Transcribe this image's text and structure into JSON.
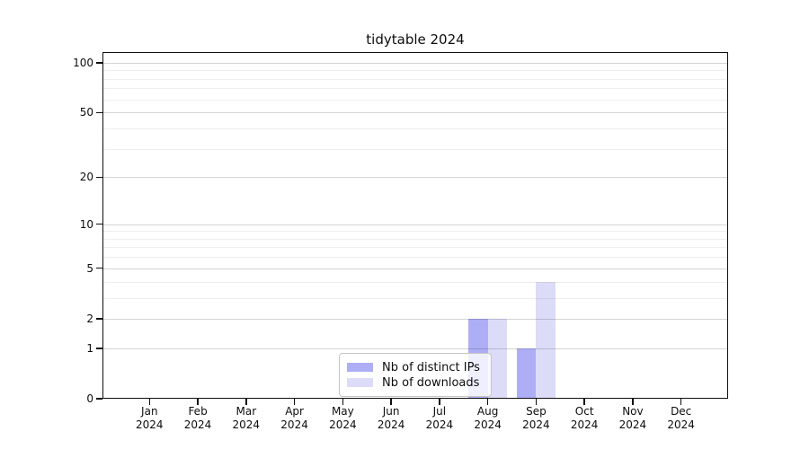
{
  "title": "tidytable 2024",
  "legend": {
    "items": [
      {
        "label": "Nb of distinct IPs",
        "color": "#aeaef6"
      },
      {
        "label": "Nb of downloads",
        "color": "#dcdcf8"
      }
    ]
  },
  "chart_data": {
    "type": "bar",
    "title": "tidytable 2024",
    "categories": [
      "Jan 2024",
      "Feb 2024",
      "Mar 2024",
      "Apr 2024",
      "May 2024",
      "Jun 2024",
      "Jul 2024",
      "Aug 2024",
      "Sep 2024",
      "Oct 2024",
      "Nov 2024",
      "Dec 2024"
    ],
    "series": [
      {
        "name": "Nb of distinct IPs",
        "color": "#aeaef6",
        "values": [
          0,
          0,
          0,
          0,
          0,
          0,
          0,
          2,
          1,
          0,
          0,
          0
        ]
      },
      {
        "name": "Nb of downloads",
        "color": "#dcdcf8",
        "values": [
          0,
          0,
          0,
          0,
          0,
          0,
          0,
          2,
          4,
          0,
          0,
          0
        ]
      }
    ],
    "xlabel": "",
    "ylabel": "",
    "yscale": "log1p",
    "ylim": [
      0,
      116
    ],
    "yticks": [
      0,
      1,
      2,
      5,
      10,
      20,
      50,
      100
    ],
    "yticks_minor": [
      3,
      4,
      6,
      7,
      8,
      9,
      30,
      40,
      60,
      70,
      80,
      90
    ],
    "grid": "horizontal",
    "legend_position": "inside-bottom-center"
  }
}
